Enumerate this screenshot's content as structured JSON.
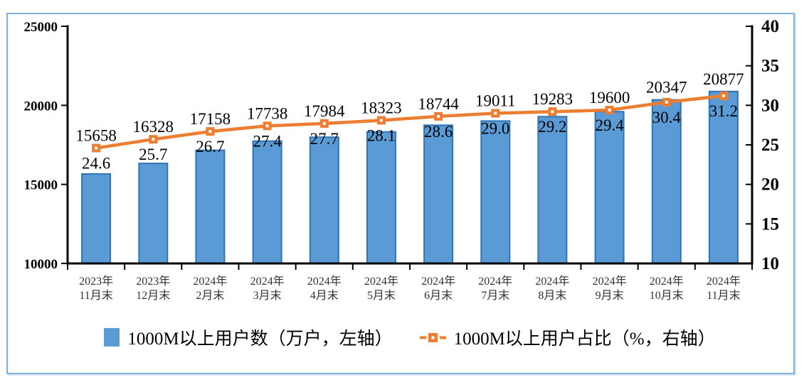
{
  "figure": {
    "border_color": "#7EB2DE",
    "background_color": "#FFFFFF"
  },
  "chart_data": {
    "type": "bar",
    "subtype": "bar-line-combo",
    "grid": false,
    "legend_position": "bottom",
    "categories": [
      [
        "2023年",
        "11月末"
      ],
      [
        "2023年",
        "12月末"
      ],
      [
        "2024年",
        "2月末"
      ],
      [
        "2024年",
        "3月末"
      ],
      [
        "2024年",
        "4月末"
      ],
      [
        "2024年",
        "5月末"
      ],
      [
        "2024年",
        "6月末"
      ],
      [
        "2024年",
        "7月末"
      ],
      [
        "2024年",
        "8月末"
      ],
      [
        "2024年",
        "9月末"
      ],
      [
        "2024年",
        "10月末"
      ],
      [
        "2024年",
        "11月末"
      ]
    ],
    "series": [
      {
        "name": "1000M以上用户数（万户，左轴）",
        "type": "bar",
        "axis": "left",
        "color": "#5B9BD5",
        "border_color": "#2E75B6",
        "values": [
          15658,
          16328,
          17158,
          17738,
          17984,
          18323,
          18744,
          19011,
          19283,
          19600,
          20347,
          20877
        ],
        "labels": [
          "15658",
          "16328",
          "17158",
          "17738",
          "17984",
          "18323",
          "18744",
          "19011",
          "19283",
          "19600",
          "20347",
          "20877"
        ]
      },
      {
        "name": "1000M以上用户占比（%，右轴）",
        "type": "line",
        "axis": "right",
        "color": "#ED7D31",
        "marker": "hollow-square",
        "values": [
          24.6,
          25.7,
          26.7,
          27.4,
          27.7,
          28.1,
          28.6,
          29.0,
          29.2,
          29.4,
          30.4,
          31.2
        ],
        "labels": [
          "24.6",
          "25.7",
          "26.7",
          "27.4",
          "27.7",
          "28.1",
          "28.6",
          "29.0",
          "29.2",
          "29.4",
          "30.4",
          "31.2"
        ]
      }
    ],
    "left_axis": {
      "min": 10000,
      "max": 25000,
      "tick_step": 5000,
      "ticks": [
        "10000",
        "15000",
        "20000",
        "25000"
      ]
    },
    "right_axis": {
      "min": 10,
      "max": 40,
      "tick_step": 5,
      "ticks": [
        "10",
        "15",
        "20",
        "25",
        "30",
        "35",
        "40"
      ]
    }
  }
}
